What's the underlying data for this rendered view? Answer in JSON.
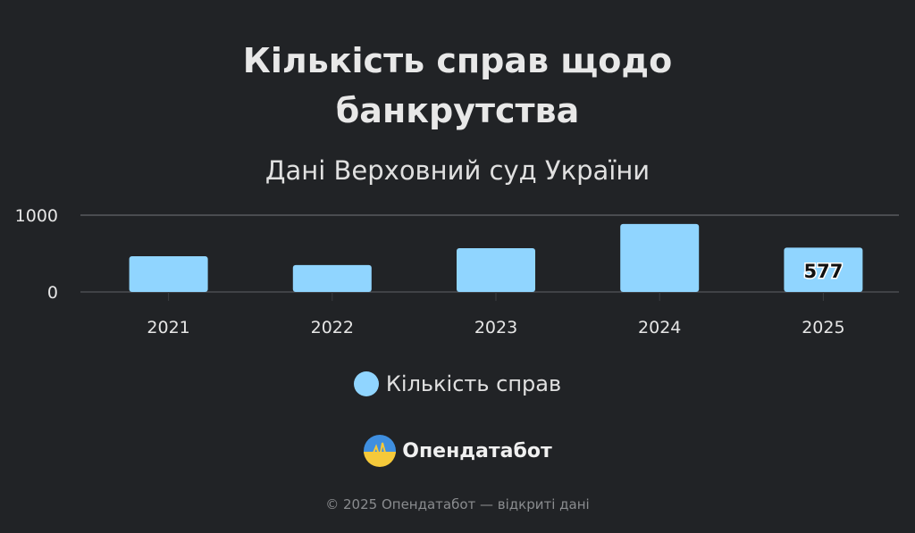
{
  "chart_data": {
    "type": "bar",
    "title": "Кількість справ щодо банкрутства",
    "subtitle": "Дані Верховний суд України",
    "categories": [
      "2021",
      "2022",
      "2023",
      "2024",
      "2025"
    ],
    "series": [
      {
        "name": "Кількість справ",
        "values": [
          465,
          350,
          570,
          885,
          577
        ]
      }
    ],
    "data_labels": {
      "2025": "577"
    },
    "ylim": [
      0,
      1000
    ],
    "yticks": [
      "0",
      "1000"
    ],
    "grid": true,
    "legend": "bottom",
    "bar_color": "#90d5ff"
  },
  "title_lines": [
    "Кількість справ щодо",
    "банкрутства"
  ],
  "brand": {
    "name": "Опендатабот",
    "icon": "opendatabot-logo-icon"
  },
  "footer": "© 2025 Опендатабот — відкриті дані",
  "colors": {
    "background": "#212326",
    "bar": "#90d5ff",
    "grid": "#4a4c50"
  }
}
